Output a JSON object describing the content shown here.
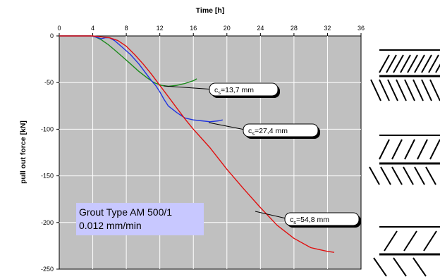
{
  "chart_data": {
    "type": "line",
    "title": "",
    "xlabel": "Time [h]",
    "ylabel": "pull out force [kN]",
    "xlim": [
      0,
      36
    ],
    "ylim": [
      -250,
      0
    ],
    "x_ticks": [
      0,
      4,
      8,
      12,
      16,
      20,
      24,
      28,
      32,
      36
    ],
    "y_ticks": [
      0,
      -50,
      -100,
      -150,
      -200,
      -250
    ],
    "grid": true,
    "x_axis_position": "top",
    "series": [
      {
        "name": "cs=13,7 mm",
        "color": "#1a8a1a",
        "x": [
          0,
          3.8,
          4.3,
          5.0,
          5.8,
          6.6,
          7.5,
          8.5,
          9.5,
          10.5,
          11.3,
          12.2,
          13.0,
          14.0,
          15.0,
          16.0,
          16.4
        ],
        "y": [
          0,
          0,
          -1,
          -4,
          -9,
          -15,
          -22,
          -30,
          -38,
          -45,
          -50,
          -53,
          -54,
          -53,
          -51,
          -48,
          -46
        ]
      },
      {
        "name": "cs=27,4 mm",
        "color": "#1f33e0",
        "x": [
          0,
          3.8,
          4.3,
          5.0,
          5.5,
          6.0,
          6.6,
          7.5,
          8.5,
          9.5,
          10.5,
          11.0,
          11.5,
          12.0,
          12.5,
          13.0,
          14.0,
          15.0,
          16.0,
          17.0,
          18.0,
          19.0,
          19.5
        ],
        "y": [
          0,
          0,
          -1,
          -3,
          -2,
          -2,
          -5,
          -12,
          -20,
          -30,
          -42,
          -48,
          -53,
          -60,
          -68,
          -75,
          -82,
          -88,
          -90,
          -91,
          -92,
          -91,
          -90
        ]
      },
      {
        "name": "cs=54,8 mm",
        "color": "#e01010",
        "x": [
          0,
          4.0,
          5.0,
          6.0,
          7.0,
          8.0,
          9.0,
          10.0,
          11.0,
          12.0,
          13.0,
          14.0,
          15.0,
          16.0,
          18.0,
          20.0,
          22.0,
          24.0,
          26.0,
          28.0,
          30.0,
          31.0,
          32.0,
          32.8
        ],
        "y": [
          0,
          0,
          -1,
          -2,
          -5,
          -11,
          -20,
          -30,
          -41,
          -53,
          -65,
          -77,
          -89,
          -100,
          -120,
          -143,
          -164,
          -184,
          -203,
          -217,
          -227,
          -229,
          -231,
          -232
        ]
      }
    ],
    "callouts": [
      {
        "series": 0,
        "label_main": "c",
        "label_sub": "s",
        "label_rest": "=13,7 mm"
      },
      {
        "series": 1,
        "label_main": "c",
        "label_sub": "s",
        "label_rest": "=27,4 mm"
      },
      {
        "series": 2,
        "label_main": "c",
        "label_sub": "s",
        "label_rest": "=54,8 mm"
      }
    ],
    "annotation": {
      "lines": [
        "Grout Type AM 500/1",
        "0.012 mm/min"
      ],
      "background": "#c8c8ff"
    }
  },
  "colors": {
    "plot_background": "#c0c0c0",
    "grid": "#ffffff"
  },
  "icons": [
    "rebar-rib-profile-coarse-icon",
    "rebar-rib-profile-medium-icon",
    "rebar-rib-profile-fine-icon"
  ]
}
